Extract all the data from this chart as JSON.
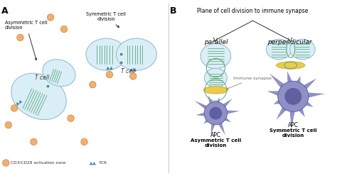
{
  "figsize": [
    4.74,
    2.48
  ],
  "dpi": 100,
  "bg_color": "#ffffff",
  "panel_A_label": "A",
  "panel_B_label": "B",
  "title_B": "Plane of cell division to immune synapse",
  "label_parallel": "parallel",
  "label_perpendicular": "perpendicular",
  "label_immune_synapse": "Immune synapse",
  "label_APC1": "APC",
  "label_APC2": "APC",
  "label_asym_bottom": "Asymmetric T cell\ndivision",
  "label_sym_bottom": "Symmetric T cell\ndivision",
  "label_tcell1": "T cell",
  "label_tcell2": "T cell",
  "label_asym_top": "Asymmetric T cell\ndivision",
  "label_sym_top": "Symmetric T cell\ndivision",
  "label_legend1": "CD3/CD28 activation zone",
  "label_legend2": "TCR",
  "cell_color": "#daeef8",
  "cell_edge": "#8ab8cc",
  "apc_color": "#9090c8",
  "apc_dark": "#6060a0",
  "orange_color": "#f0b070",
  "orange_edge": "#d08040",
  "synapse_color": "#e8cc50",
  "synapse_edge": "#c8a820",
  "green_color": "#5aaa78",
  "teal_color": "#4080aa",
  "arrow_color": "#303030"
}
